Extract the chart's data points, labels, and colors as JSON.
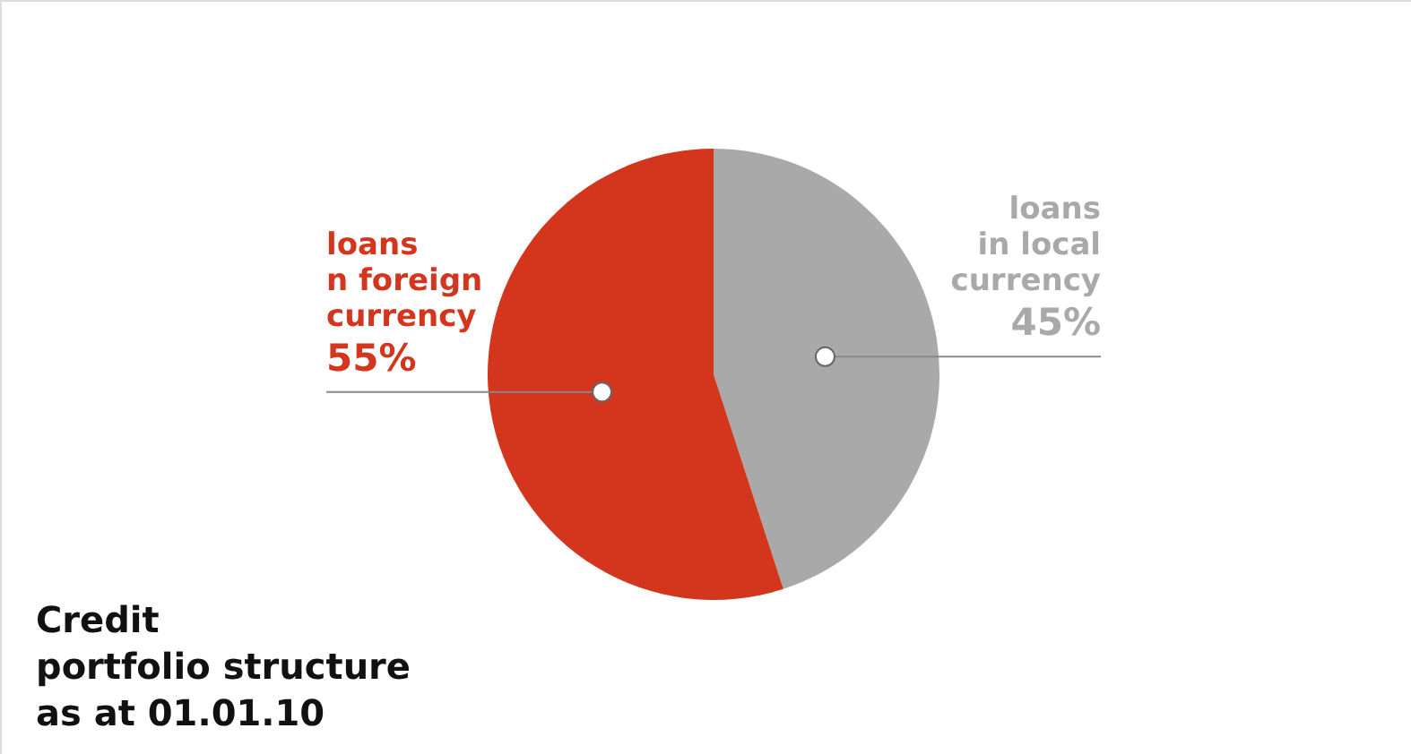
{
  "chart_data": {
    "type": "pie",
    "title": "Credit\nportfolio structure\nas at 01.01.10",
    "categories": [
      "loans\nin local\ncurrency",
      "loans\nn foreign\ncurrency"
    ],
    "values": [
      45,
      55
    ],
    "colors": [
      "#a9a9a9",
      "#d3361c"
    ],
    "value_labels": [
      "45%",
      "55%"
    ],
    "legend": false
  }
}
